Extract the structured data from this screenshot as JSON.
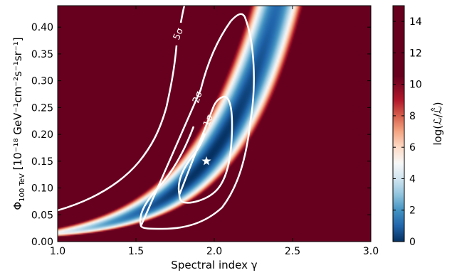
{
  "chart_data": {
    "type": "heatmap",
    "xlabel": "Spectral index γ",
    "ylabel_main": "Φ",
    "ylabel_sub": "100 TeV",
    "ylabel_rest": " [10⁻¹⁸ GeV⁻¹cm⁻²s⁻¹sr⁻¹]",
    "colorbar_label": "log(ℒ/ℒ̂)",
    "xlim": [
      1.0,
      3.0
    ],
    "ylim": [
      0.0,
      0.44
    ],
    "clim": [
      0,
      15
    ],
    "colormap": "RdBu_r",
    "x_ticks": [
      "1.0",
      "1.5",
      "2.0",
      "2.5",
      "3.0"
    ],
    "y_ticks": [
      "0.00",
      "0.05",
      "0.10",
      "0.15",
      "0.20",
      "0.25",
      "0.30",
      "0.35",
      "0.40"
    ],
    "colorbar_ticks": [
      "0",
      "2",
      "4",
      "6",
      "8",
      "10",
      "12",
      "14"
    ],
    "best_fit": {
      "gamma": 1.95,
      "phi": 0.15,
      "marker": "star",
      "color": "#ffffff"
    },
    "contours": [
      {
        "level": "1σ",
        "label": "1σ",
        "color": "#ffffff"
      },
      {
        "level": "2σ",
        "label": "2σ",
        "color": "#ffffff"
      },
      {
        "level": "5σ",
        "label": "5σ",
        "color": "#ffffff"
      }
    ]
  }
}
